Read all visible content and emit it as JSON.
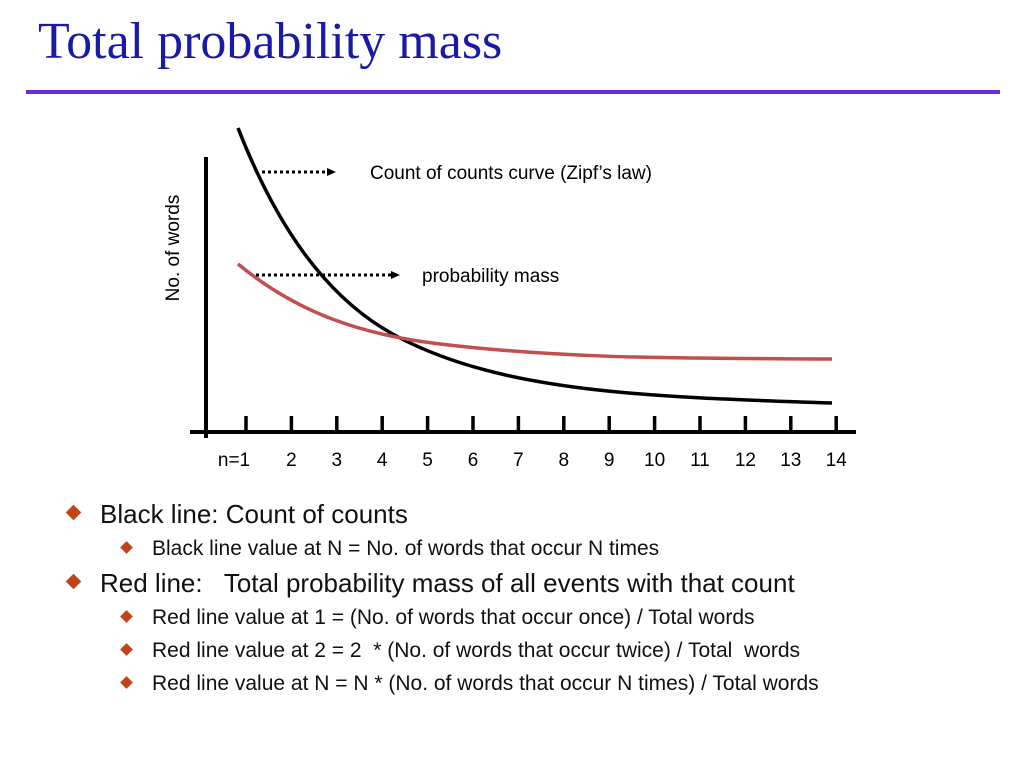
{
  "slide": {
    "title": "Total probability mass"
  },
  "diagram": {
    "y_axis_label": "No. of words",
    "x_ticks": [
      "n=1",
      "2",
      "3",
      "4",
      "5",
      "6",
      "7",
      "8",
      "9",
      "10",
      "11",
      "12",
      "13",
      "14"
    ],
    "annotations": {
      "zipf": "Count of counts curve (Zipf’s law)",
      "mass": "probability mass"
    },
    "curves": [
      {
        "id": "count-of-counts",
        "color": "#000000"
      },
      {
        "id": "probability-mass",
        "color": "#c0504d"
      }
    ]
  },
  "bullets": [
    {
      "text": "Black line: Count of counts",
      "sub": [
        "Black line value at N = No. of words that occur N times"
      ]
    },
    {
      "text": "Red line:   Total probability mass of all events with that count",
      "sub": [
        "Red line value at 1 = (No. of words that occur once) / Total words",
        "Red line value at 2 = 2  * (No. of words that occur twice) / Total  words",
        "Red line value at N = N * (No. of words that occur N times) / Total words"
      ]
    }
  ],
  "colors": {
    "title": "#1a1aa6",
    "rule": "#6a2cd8",
    "bullet_marker": "#c0431a",
    "red_curve": "#c0504d",
    "black_curve": "#000000"
  }
}
